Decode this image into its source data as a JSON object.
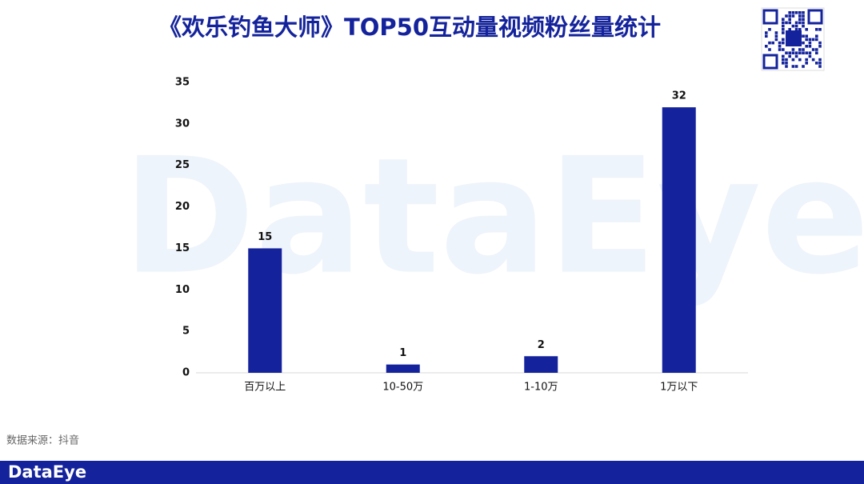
{
  "chart_data": {
    "type": "bar",
    "title": "《欢乐钓鱼大师》TOP50互动量视频粉丝量统计",
    "categories": [
      "百万以上",
      "10-50万",
      "1-10万",
      "1万以下"
    ],
    "values": [
      15,
      1,
      2,
      32
    ],
    "color": "#14239b",
    "ylim": [
      0,
      35
    ],
    "yticks": [
      0,
      5,
      10,
      15,
      20,
      25,
      30,
      35
    ],
    "grid": false,
    "source": "数据来源：抖音",
    "watermark": "DataEye",
    "footer_logo": "DataEye"
  }
}
